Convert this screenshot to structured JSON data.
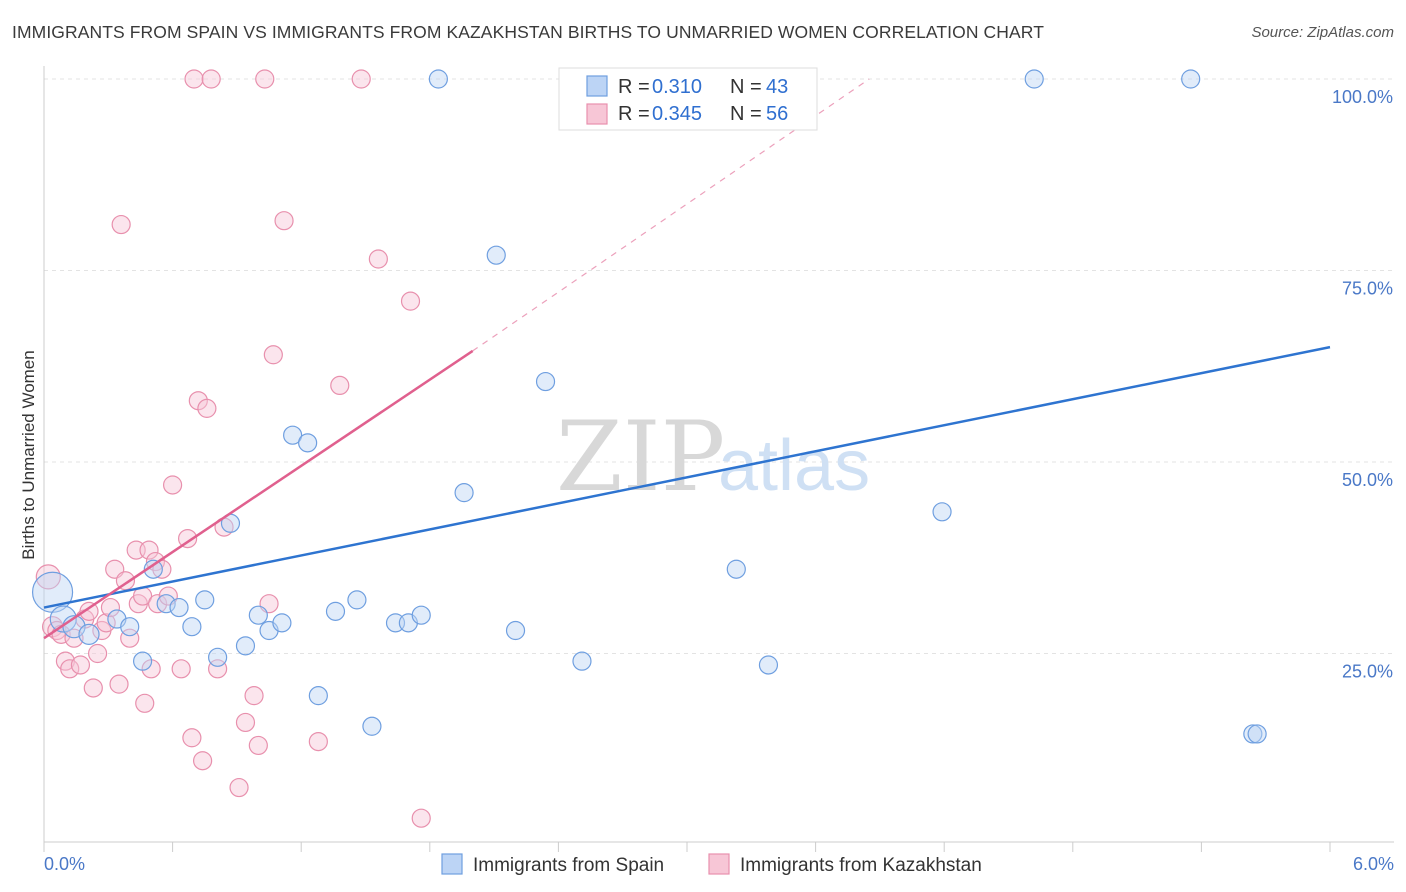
{
  "title": "IMMIGRANTS FROM SPAIN VS IMMIGRANTS FROM KAZAKHSTAN BIRTHS TO UNMARRIED WOMEN CORRELATION CHART",
  "source": "Source: ZipAtlas.com",
  "watermark": {
    "zip": "ZIP",
    "atlas": "atlas"
  },
  "colors": {
    "spain_fill": "#bcd4f5",
    "spain_stroke": "#6f9fe0",
    "spain_line": "#2e74d0",
    "kaz_fill": "#f7c6d6",
    "kaz_stroke": "#e890ad",
    "kaz_line": "#e0608e"
  },
  "legend": {
    "r_label": "R =",
    "n_label": "N =",
    "spain": {
      "r": "0.310",
      "n": "43"
    },
    "kazakhstan": {
      "r": "0.345",
      "n": "56"
    }
  },
  "chart_data": {
    "type": "scatter",
    "title": "IMMIGRANTS FROM SPAIN VS IMMIGRANTS FROM KAZAKHSTAN BIRTHS TO UNMARRIED WOMEN CORRELATION CHART",
    "xlabel": "",
    "ylabel": "Births to Unmarried Women",
    "xlim": [
      0,
      6
    ],
    "ylim": [
      0,
      102
    ],
    "x_tick_labels": [
      "0.0%",
      "6.0%"
    ],
    "y_ticks": [
      25,
      50,
      75,
      100
    ],
    "y_tick_labels": [
      "25.0%",
      "50.0%",
      "75.0%",
      "100.0%"
    ],
    "grid": true,
    "legend_position": "top-center",
    "series": [
      {
        "name": "Immigrants from Spain",
        "r": 0.31,
        "n": 43,
        "trend": {
          "x": [
            0,
            6
          ],
          "y": [
            31.0,
            65.0
          ]
        },
        "points": [
          [
            0.04,
            33.0,
            20
          ],
          [
            0.09,
            29.5,
            13
          ],
          [
            0.14,
            28.5,
            11
          ],
          [
            0.21,
            27.5,
            10
          ],
          [
            0.34,
            29.5,
            9
          ],
          [
            0.4,
            28.5,
            9
          ],
          [
            0.46,
            24.0,
            9
          ],
          [
            0.51,
            36.0,
            9
          ],
          [
            0.57,
            31.5,
            9
          ],
          [
            0.63,
            31.0,
            9
          ],
          [
            0.69,
            28.5,
            9
          ],
          [
            0.75,
            32.0,
            9
          ],
          [
            0.81,
            24.5,
            9
          ],
          [
            0.87,
            42.0,
            9
          ],
          [
            0.94,
            26.0,
            9
          ],
          [
            1.0,
            30.0,
            9
          ],
          [
            1.05,
            28.0,
            9
          ],
          [
            1.11,
            29.0,
            9
          ],
          [
            1.16,
            53.5,
            9
          ],
          [
            1.23,
            52.5,
            9
          ],
          [
            1.28,
            19.5,
            9
          ],
          [
            1.36,
            30.5,
            9
          ],
          [
            1.46,
            32.0,
            9
          ],
          [
            1.53,
            15.5,
            9
          ],
          [
            1.64,
            29.0,
            9
          ],
          [
            1.7,
            29.0,
            9
          ],
          [
            1.76,
            30.0,
            9
          ],
          [
            1.84,
            100.0,
            9
          ],
          [
            1.96,
            46.0,
            9
          ],
          [
            2.11,
            77.0,
            9
          ],
          [
            2.2,
            28.0,
            9
          ],
          [
            2.34,
            60.5,
            9
          ],
          [
            2.51,
            24.0,
            9
          ],
          [
            2.91,
            97.5,
            9
          ],
          [
            3.03,
            100.0,
            9
          ],
          [
            3.23,
            36.0,
            9
          ],
          [
            3.38,
            23.5,
            9
          ],
          [
            4.19,
            43.5,
            9
          ],
          [
            4.62,
            100.0,
            9
          ],
          [
            5.35,
            100.0,
            9
          ],
          [
            5.64,
            14.5,
            9
          ],
          [
            5.66,
            14.5,
            9
          ]
        ]
      },
      {
        "name": "Immigrants from Kazakhstan",
        "r": 0.345,
        "n": 56,
        "trend": {
          "x": [
            0,
            2.0
          ],
          "y": [
            27.0,
            64.5
          ],
          "dashed_to": {
            "x": 3.85,
            "y": 100.0
          }
        },
        "points": [
          [
            0.02,
            35.0,
            12
          ],
          [
            0.04,
            28.5,
            10
          ],
          [
            0.06,
            28.0,
            9
          ],
          [
            0.08,
            27.5,
            9
          ],
          [
            0.1,
            24.0,
            9
          ],
          [
            0.12,
            23.0,
            9
          ],
          [
            0.14,
            27.0,
            9
          ],
          [
            0.17,
            23.5,
            9
          ],
          [
            0.19,
            29.5,
            9
          ],
          [
            0.21,
            30.5,
            9
          ],
          [
            0.23,
            20.5,
            9
          ],
          [
            0.25,
            25.0,
            9
          ],
          [
            0.27,
            28.0,
            9
          ],
          [
            0.29,
            29.0,
            9
          ],
          [
            0.31,
            31.0,
            9
          ],
          [
            0.33,
            36.0,
            9
          ],
          [
            0.35,
            21.0,
            9
          ],
          [
            0.36,
            81.0,
            9
          ],
          [
            0.38,
            34.5,
            9
          ],
          [
            0.4,
            27.0,
            9
          ],
          [
            0.43,
            38.5,
            9
          ],
          [
            0.44,
            31.5,
            9
          ],
          [
            0.46,
            32.5,
            9
          ],
          [
            0.47,
            18.5,
            9
          ],
          [
            0.49,
            38.5,
            9
          ],
          [
            0.5,
            23.0,
            9
          ],
          [
            0.52,
            37.0,
            9
          ],
          [
            0.53,
            31.5,
            9
          ],
          [
            0.55,
            36.0,
            9
          ],
          [
            0.58,
            32.5,
            9
          ],
          [
            0.6,
            47.0,
            9
          ],
          [
            0.64,
            23.0,
            9
          ],
          [
            0.67,
            40.0,
            9
          ],
          [
            0.69,
            14.0,
            9
          ],
          [
            0.7,
            100.0,
            9
          ],
          [
            0.72,
            58.0,
            9
          ],
          [
            0.74,
            11.0,
            9
          ],
          [
            0.76,
            57.0,
            9
          ],
          [
            0.78,
            100.0,
            9
          ],
          [
            0.81,
            23.0,
            9
          ],
          [
            0.84,
            41.5,
            9
          ],
          [
            0.91,
            7.5,
            9
          ],
          [
            0.94,
            16.0,
            9
          ],
          [
            0.98,
            19.5,
            9
          ],
          [
            1.0,
            13.0,
            9
          ],
          [
            1.03,
            100.0,
            9
          ],
          [
            1.05,
            31.5,
            9
          ],
          [
            1.07,
            64.0,
            9
          ],
          [
            1.12,
            81.5,
            9
          ],
          [
            1.28,
            13.5,
            9
          ],
          [
            1.38,
            60.0,
            9
          ],
          [
            1.48,
            100.0,
            9
          ],
          [
            1.56,
            76.5,
            9
          ],
          [
            1.71,
            71.0,
            9
          ],
          [
            1.76,
            3.5,
            9
          ]
        ]
      }
    ]
  },
  "bottom_legend": {
    "spain_label": "Immigrants from Spain",
    "kazakhstan_label": "Immigrants from Kazakhstan"
  }
}
